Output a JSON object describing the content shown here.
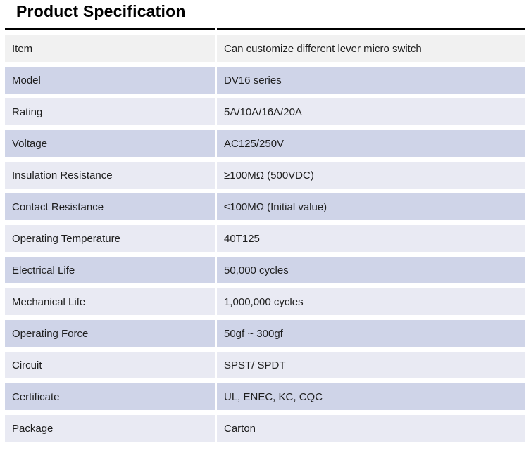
{
  "title": "Product Specification",
  "colors": {
    "header_row_bg": "#f1f1f1",
    "light_row_bg": "#e9eaf3",
    "dark_row_bg": "#cfd4e8",
    "top_border": "#000000",
    "text": "#1e1e1e"
  },
  "table": {
    "rows": [
      {
        "label": "Item",
        "value": "Can customize different lever micro switch"
      },
      {
        "label": "Model",
        "value": "DV16 series"
      },
      {
        "label": "Rating",
        "value": "5A/10A/16A/20A"
      },
      {
        "label": "Voltage",
        "value": "AC125/250V"
      },
      {
        "label": "Insulation Resistance",
        "value": "≥100MΩ (500VDC)"
      },
      {
        "label": "Contact Resistance",
        "value": "≤100MΩ (Initial value)"
      },
      {
        "label": "Operating Temperature",
        "value": "40T125"
      },
      {
        "label": "Electrical Life",
        "value": "50,000 cycles"
      },
      {
        "label": "Mechanical Life",
        "value": "1,000,000 cycles"
      },
      {
        "label": "Operating Force",
        "value": "50gf ~ 300gf"
      },
      {
        "label": "Circuit",
        "value": "SPST/ SPDT"
      },
      {
        "label": "Certificate",
        "value": "UL, ENEC, KC, CQC"
      },
      {
        "label": "Package",
        "value": "Carton"
      }
    ]
  }
}
